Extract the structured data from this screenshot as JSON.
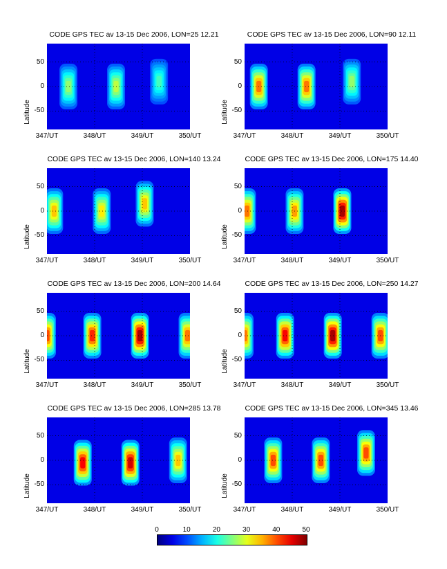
{
  "chart_data": [
    {
      "type": "heatmap",
      "title": "CODE GPS TEC av 13-15 Dec 2006, LON=25  12.21",
      "ylabel": "Latitude",
      "yticks": [
        "50",
        "0",
        "-50"
      ],
      "xticks": [
        "347/UT",
        "348/UT",
        "349/UT",
        "350/UT"
      ],
      "xlim": [
        347,
        350
      ],
      "ylim": [
        -87.5,
        87.5
      ],
      "clim": [
        0,
        50
      ],
      "features": [
        {
          "x": 347.45,
          "y": 0,
          "peak": 26
        },
        {
          "x": 348.45,
          "y": 0,
          "peak": 28
        },
        {
          "x": 349.35,
          "y": 10,
          "peak": 22
        }
      ]
    },
    {
      "type": "heatmap",
      "title": "CODE GPS TEC av 13-15 Dec 2006, LON=90  12.11",
      "ylabel": "Latitude",
      "yticks": [
        "50",
        "0",
        "-50"
      ],
      "xticks": [
        "347/UT",
        "348/UT",
        "349/UT",
        "350/UT"
      ],
      "xlim": [
        347,
        350
      ],
      "ylim": [
        -87.5,
        87.5
      ],
      "clim": [
        0,
        50
      ],
      "features": [
        {
          "x": 347.3,
          "y": 0,
          "peak": 38
        },
        {
          "x": 348.3,
          "y": 0,
          "peak": 38
        },
        {
          "x": 349.25,
          "y": 10,
          "peak": 26
        }
      ]
    },
    {
      "type": "heatmap",
      "title": "CODE GPS TEC av 13-15 Dec 2006, LON=140  13.24",
      "ylabel": "Latitude",
      "yticks": [
        "50",
        "0",
        "-50"
      ],
      "xticks": [
        "347/UT",
        "348/UT",
        "349/UT",
        "350/UT"
      ],
      "xlim": [
        347,
        350
      ],
      "ylim": [
        -87.5,
        87.5
      ],
      "clim": [
        0,
        50
      ],
      "features": [
        {
          "x": 347.15,
          "y": 0,
          "peak": 34
        },
        {
          "x": 348.15,
          "y": 0,
          "peak": 32
        },
        {
          "x": 349.05,
          "y": 15,
          "peak": 34
        }
      ]
    },
    {
      "type": "heatmap",
      "title": "CODE GPS TEC av 13-15 Dec 2006, LON=175  14.40",
      "ylabel": "Latitude",
      "yticks": [
        "50",
        "0",
        "-50"
      ],
      "xticks": [
        "347/UT",
        "348/UT",
        "349/UT",
        "350/UT"
      ],
      "xlim": [
        347,
        350
      ],
      "ylim": [
        -87.5,
        87.5
      ],
      "clim": [
        0,
        50
      ],
      "features": [
        {
          "x": 347.05,
          "y": 0,
          "peak": 38
        },
        {
          "x": 348.05,
          "y": 0,
          "peak": 36
        },
        {
          "x": 349.05,
          "y": 0,
          "peak": 48
        }
      ]
    },
    {
      "type": "heatmap",
      "title": "CODE GPS TEC av 13-15 Dec 2006, LON=200  14.64",
      "ylabel": "Latitude",
      "yticks": [
        "50",
        "0",
        "-50"
      ],
      "xticks": [
        "347/UT",
        "348/UT",
        "349/UT",
        "350/UT"
      ],
      "xlim": [
        347,
        350
      ],
      "ylim": [
        -87.5,
        87.5
      ],
      "clim": [
        0,
        50
      ],
      "features": [
        {
          "x": 347.0,
          "y": 0,
          "peak": 40
        },
        {
          "x": 347.95,
          "y": 0,
          "peak": 42
        },
        {
          "x": 348.95,
          "y": 0,
          "peak": 48
        },
        {
          "x": 349.95,
          "y": 0,
          "peak": 38
        }
      ]
    },
    {
      "type": "heatmap",
      "title": "CODE GPS TEC av 13-15 Dec 2006, LON=250  14.27",
      "ylabel": "Latitude",
      "yticks": [
        "50",
        "0",
        "-50"
      ],
      "xticks": [
        "347/UT",
        "348/UT",
        "349/UT",
        "350/UT"
      ],
      "xlim": [
        347,
        350
      ],
      "ylim": [
        -87.5,
        87.5
      ],
      "clim": [
        0,
        50
      ],
      "features": [
        {
          "x": 347.0,
          "y": 0,
          "peak": 38
        },
        {
          "x": 347.85,
          "y": 0,
          "peak": 44
        },
        {
          "x": 348.85,
          "y": 0,
          "peak": 48
        },
        {
          "x": 349.85,
          "y": 0,
          "peak": 40
        }
      ]
    },
    {
      "type": "heatmap",
      "title": "CODE GPS TEC av 13-15 Dec 2006, LON=285  13.78",
      "ylabel": "Latitude",
      "yticks": [
        "50",
        "0",
        "-50"
      ],
      "xticks": [
        "347/UT",
        "348/UT",
        "349/UT",
        "350/UT"
      ],
      "xlim": [
        347,
        350
      ],
      "ylim": [
        -87.5,
        87.5
      ],
      "clim": [
        0,
        50
      ],
      "features": [
        {
          "x": 347.75,
          "y": -5,
          "peak": 44
        },
        {
          "x": 348.75,
          "y": -5,
          "peak": 46
        },
        {
          "x": 349.75,
          "y": 0,
          "peak": 34
        }
      ]
    },
    {
      "type": "heatmap",
      "title": "CODE GPS TEC av 13-15 Dec 2006, LON=345  13.46",
      "ylabel": "Latitude",
      "yticks": [
        "50",
        "0",
        "-50"
      ],
      "xticks": [
        "347/UT",
        "348/UT",
        "349/UT",
        "350/UT"
      ],
      "xlim": [
        347,
        350
      ],
      "ylim": [
        -87.5,
        87.5
      ],
      "clim": [
        0,
        50
      ],
      "features": [
        {
          "x": 347.6,
          "y": 0,
          "peak": 40
        },
        {
          "x": 348.6,
          "y": 0,
          "peak": 40
        },
        {
          "x": 349.55,
          "y": 15,
          "peak": 40
        }
      ]
    }
  ],
  "colorbar": {
    "ticks": [
      "0",
      "10",
      "20",
      "30",
      "40",
      "50"
    ],
    "range": [
      0,
      50
    ]
  }
}
